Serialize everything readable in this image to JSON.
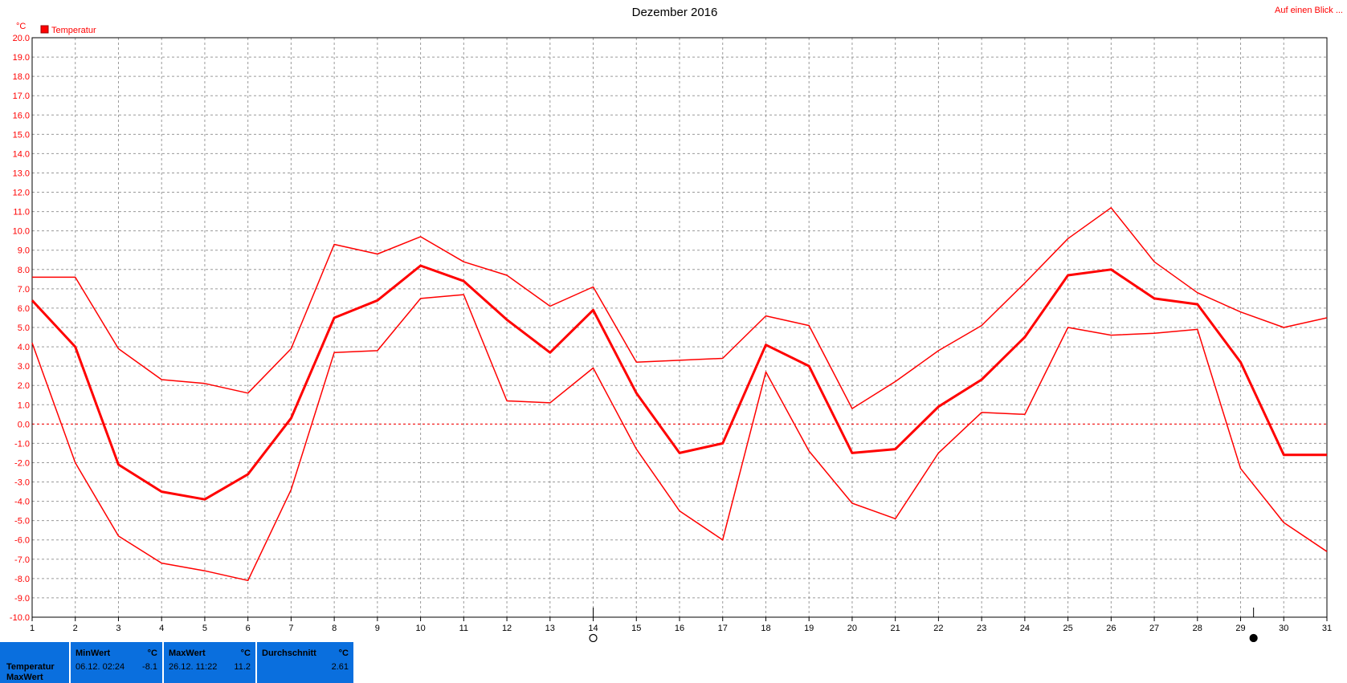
{
  "chart_data": {
    "type": "line",
    "title": "Dezember 2016",
    "unit_label": "°C",
    "top_right_link": "Auf einen Blick ...",
    "legend": {
      "label": "Temperatur",
      "color": "#ff0000",
      "placement": "top-left"
    },
    "x": [
      1,
      2,
      3,
      4,
      5,
      6,
      7,
      8,
      9,
      10,
      11,
      12,
      13,
      14,
      15,
      16,
      17,
      18,
      19,
      20,
      21,
      22,
      23,
      24,
      25,
      26,
      27,
      28,
      29,
      30,
      31
    ],
    "ylim": [
      -10,
      20
    ],
    "ytick_step": 1,
    "grid": true,
    "zero_line": true,
    "markers": [
      {
        "day": 14,
        "symbol": "full-moon"
      },
      {
        "day": 29.3,
        "symbol": "new-moon"
      }
    ],
    "series": [
      {
        "role": "max",
        "line_width": 1.5,
        "values": [
          7.6,
          7.6,
          3.9,
          2.3,
          2.1,
          1.6,
          3.9,
          9.3,
          8.8,
          9.7,
          8.4,
          7.7,
          6.1,
          7.1,
          3.2,
          3.3,
          3.4,
          5.6,
          5.1,
          0.8,
          2.2,
          3.8,
          5.1,
          7.3,
          9.6,
          11.2,
          8.4,
          6.8,
          5.8,
          5.0,
          5.5
        ]
      },
      {
        "role": "avg",
        "line_width": 3,
        "values": [
          6.4,
          4.0,
          -2.1,
          -3.5,
          -3.9,
          -2.6,
          0.3,
          5.5,
          6.4,
          8.2,
          7.4,
          5.4,
          3.7,
          5.9,
          1.6,
          -1.5,
          -1.0,
          4.1,
          3.0,
          -1.5,
          -1.3,
          0.9,
          2.3,
          4.5,
          7.7,
          8.0,
          6.5,
          6.2,
          3.2,
          -1.6,
          -1.6
        ]
      },
      {
        "role": "min",
        "line_width": 1.5,
        "values": [
          4.2,
          -2.0,
          -5.8,
          -7.2,
          -7.6,
          -8.1,
          -3.4,
          3.7,
          3.8,
          6.5,
          6.7,
          1.2,
          1.1,
          2.9,
          -1.3,
          -4.5,
          -6.0,
          2.7,
          -1.4,
          -4.1,
          -4.9,
          -1.5,
          0.6,
          0.5,
          5.0,
          4.6,
          4.7,
          4.9,
          -2.3,
          -5.1,
          -6.6
        ]
      }
    ]
  },
  "stats": {
    "row_labels": [
      "Temperatur",
      "MaxWert"
    ],
    "min": {
      "header": "MinWert",
      "unit": "°C",
      "time": "06.12.  02:24",
      "value": "-8.1"
    },
    "max": {
      "header": "MaxWert",
      "unit": "°C",
      "time": "26.12.  11:22",
      "value": "11.2"
    },
    "avg": {
      "header": "Durchschnitt",
      "unit": "°C",
      "value": "2.61"
    }
  }
}
